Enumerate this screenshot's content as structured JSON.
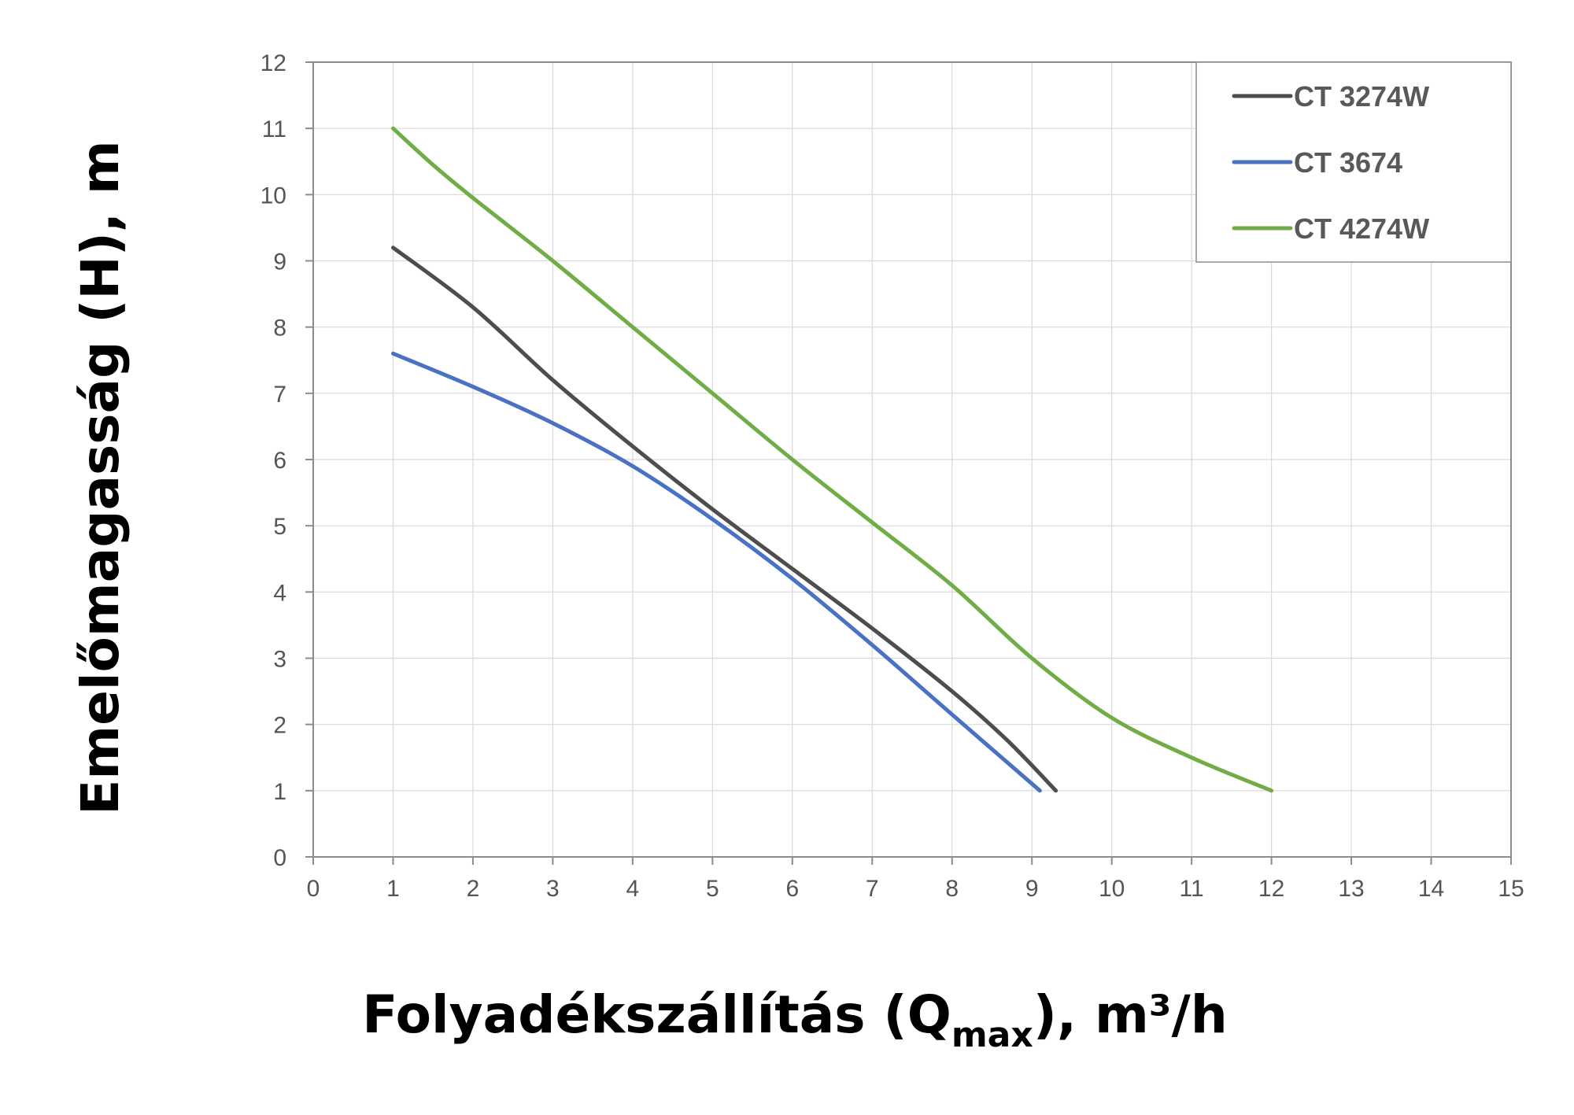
{
  "chart_data": {
    "type": "line",
    "xlabel": "Folyadékszállítás (Qmax), m³/h",
    "xlabel_parts": {
      "main": "Folyadékszállítás (Q",
      "sub": "max",
      "tail": "), m³/h"
    },
    "ylabel": "Emelőmagasság (H), m",
    "xlim": [
      0,
      15
    ],
    "ylim": [
      0,
      12
    ],
    "x_ticks": [
      "0",
      "1",
      "2",
      "3",
      "4",
      "5",
      "6",
      "7",
      "8",
      "9",
      "10",
      "11",
      "12",
      "13",
      "14",
      "15"
    ],
    "y_ticks": [
      "0",
      "1",
      "2",
      "3",
      "4",
      "5",
      "6",
      "7",
      "8",
      "9",
      "10",
      "11",
      "12"
    ],
    "grid": true,
    "legend_position": "top-right",
    "series": [
      {
        "name": "CT 3274W",
        "color": "#4d4d4d",
        "x": [
          1,
          2,
          3,
          4,
          5,
          6,
          7,
          8,
          8.7,
          9.3
        ],
        "y": [
          9.2,
          8.3,
          7.2,
          6.2,
          5.25,
          4.35,
          3.45,
          2.5,
          1.75,
          1.0
        ]
      },
      {
        "name": "CT 3674",
        "color": "#4a72c4",
        "x": [
          1,
          2,
          3,
          4,
          5,
          6,
          7,
          8,
          9.1
        ],
        "y": [
          7.6,
          7.1,
          6.55,
          5.9,
          5.1,
          4.2,
          3.2,
          2.15,
          1.0
        ]
      },
      {
        "name": "CT 4274W",
        "color": "#70ad47",
        "x": [
          1,
          1.5,
          2,
          3,
          4,
          5,
          6,
          7,
          8,
          9,
          10,
          11,
          12
        ],
        "y": [
          11.0,
          10.45,
          9.95,
          9.0,
          8.0,
          7.0,
          6.0,
          5.05,
          4.1,
          3.0,
          2.1,
          1.5,
          1.0
        ]
      }
    ]
  }
}
